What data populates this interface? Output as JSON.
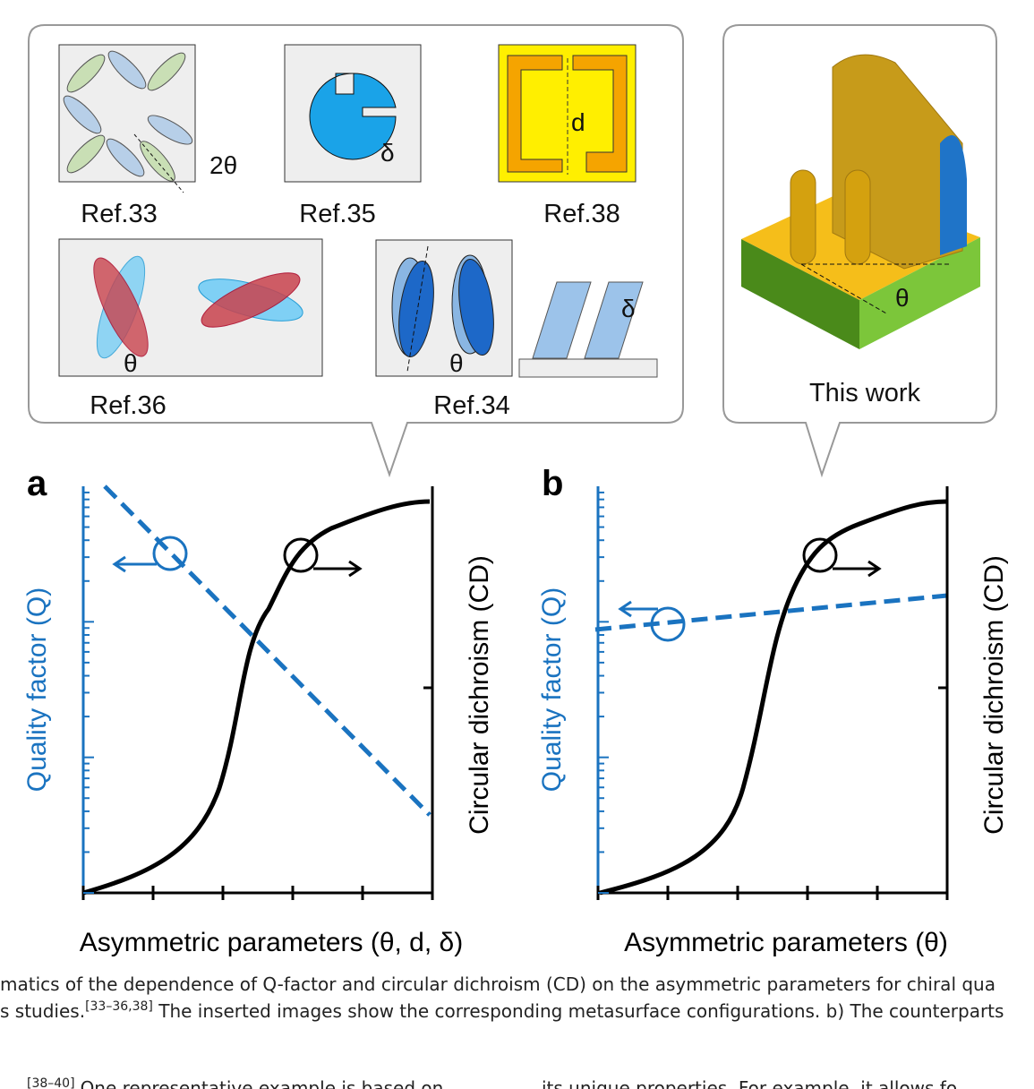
{
  "callout_left": {
    "refs": [
      "Ref.33",
      "Ref.35",
      "Ref.38",
      "Ref.36",
      "Ref.34"
    ],
    "symbols": [
      "2θ",
      "δ",
      "d",
      "θ",
      "θ",
      "δ"
    ]
  },
  "callout_right": {
    "label": "This work",
    "symbol": "θ"
  },
  "panels": [
    {
      "letter": "a",
      "y_left": "Quality factor (Q)",
      "y_right": "Circular dichroism (CD)",
      "x_label": "Asymmetric parameters (θ, d, δ)"
    },
    {
      "letter": "b",
      "y_left": "Quality factor (Q)",
      "y_right": "Circular dichroism (CD)",
      "x_label": "Asymmetric parameters (θ)"
    }
  ],
  "caption": {
    "line1": "matics of the dependence of Q-factor and circular dichroism (CD) on the asymmetric parameters for chiral qua",
    "line2_start": "s studies.",
    "line2_sup": "[33–36,38]",
    "line2_end": " The inserted images show the corresponding metasurface configurations. b) The counterparts"
  },
  "body": {
    "left_sup": "[38–40]",
    "left": "One representative example is based on",
    "right": "its unique properties. For example, it allows fo"
  }
}
